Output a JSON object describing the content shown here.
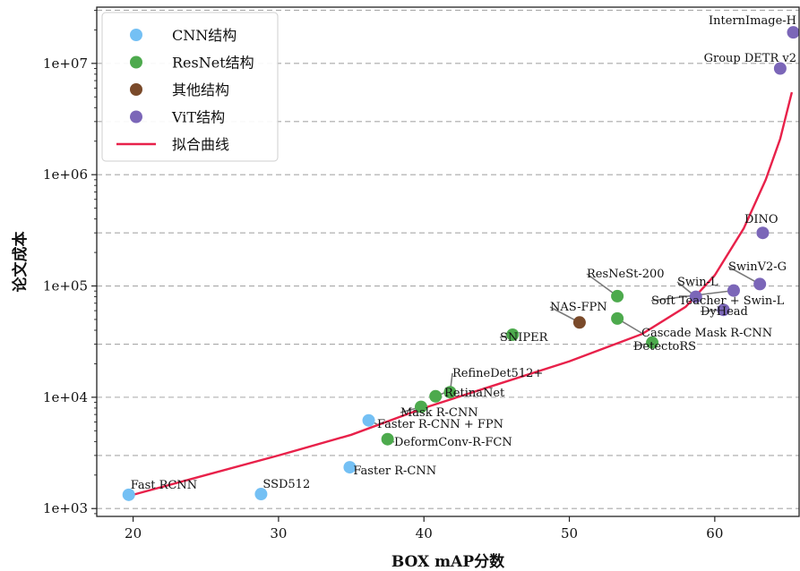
{
  "chart_data": {
    "type": "scatter",
    "title": "",
    "xlabel": "BOX mAP分数",
    "ylabel": "论文成本",
    "xlim": [
      17.5,
      65.8
    ],
    "ylim": [
      850,
      32000000
    ],
    "yscale": "log",
    "grid": "horizontal-dashed",
    "legend": "top-left",
    "x_ticks": [
      20,
      30,
      40,
      50,
      60
    ],
    "y_ticks": [
      {
        "value": 1000,
        "label": "1e+03"
      },
      {
        "value": 10000,
        "label": "1e+04"
      },
      {
        "value": 100000,
        "label": "1e+05"
      },
      {
        "value": 1000000,
        "label": "1e+06"
      },
      {
        "value": 10000000,
        "label": "1e+07"
      }
    ],
    "y_gridlines": [
      1000,
      3000,
      10000,
      30000,
      100000,
      300000,
      1000000,
      3000000,
      10000000,
      30000000
    ],
    "series": [
      {
        "name": "CNN结构",
        "color": "#74c0f4",
        "points": [
          {
            "label": "Fast RCNN",
            "x": 19.7,
            "y": 1330
          },
          {
            "label": "SSD512",
            "x": 28.8,
            "y": 1350
          },
          {
            "label": "Faster R-CNN",
            "x": 34.9,
            "y": 2350
          },
          {
            "label": "Faster R-CNN + FPN",
            "x": 36.2,
            "y": 6200
          }
        ]
      },
      {
        "name": "ResNet结构",
        "color": "#4daa4d",
        "points": [
          {
            "label": "DeformConv-R-FCN",
            "x": 37.5,
            "y": 4200
          },
          {
            "label": "Mask R-CNN",
            "x": 39.8,
            "y": 8200
          },
          {
            "label": "RetinaNet",
            "x": 40.8,
            "y": 10200
          },
          {
            "label": "RefineDet512+",
            "x": 41.8,
            "y": 11100
          },
          {
            "label": "SNIPER",
            "x": 46.1,
            "y": 36500
          },
          {
            "label": "ResNeSt-200",
            "x": 53.3,
            "y": 81000
          },
          {
            "label": "Cascade Mask R-CNN",
            "x": 53.3,
            "y": 51000
          },
          {
            "label": "DetectoRS",
            "x": 55.7,
            "y": 31000
          }
        ]
      },
      {
        "name": "其他结构",
        "color": "#7a4a2a",
        "points": [
          {
            "label": "NAS-FPN",
            "x": 50.7,
            "y": 47000
          }
        ]
      },
      {
        "name": "ViT结构",
        "color": "#7b66b8",
        "points": [
          {
            "label": "Swin-L",
            "x": 58.7,
            "y": 80000
          },
          {
            "label": "Soft Teacher + Swin-L",
            "x": 61.3,
            "y": 91000
          },
          {
            "label": "DyHead",
            "x": 60.6,
            "y": 61000
          },
          {
            "label": "SwinV2-G",
            "x": 63.1,
            "y": 104000
          },
          {
            "label": "DINO",
            "x": 63.3,
            "y": 300000
          },
          {
            "label": "Group DETR v2",
            "x": 64.5,
            "y": 9000000
          },
          {
            "label": "InternImage-H",
            "x": 65.4,
            "y": 19000000
          }
        ]
      }
    ],
    "fit_curve": {
      "name": "拟合曲线",
      "color": "#e8214a",
      "points": [
        {
          "x": 19.7,
          "y": 1300
        },
        {
          "x": 25,
          "y": 2000
        },
        {
          "x": 30,
          "y": 3000
        },
        {
          "x": 35,
          "y": 4600
        },
        {
          "x": 40,
          "y": 8000
        },
        {
          "x": 45,
          "y": 13000
        },
        {
          "x": 50,
          "y": 21000
        },
        {
          "x": 55,
          "y": 37000
        },
        {
          "x": 58,
          "y": 65000
        },
        {
          "x": 60,
          "y": 125000
        },
        {
          "x": 62,
          "y": 330000
        },
        {
          "x": 63.5,
          "y": 900000
        },
        {
          "x": 64.5,
          "y": 2100000
        },
        {
          "x": 65.3,
          "y": 5500000
        }
      ]
    }
  }
}
